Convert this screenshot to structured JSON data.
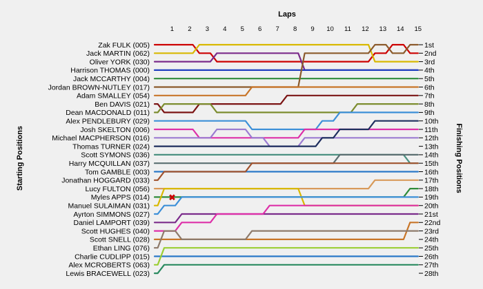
{
  "chart_data": {
    "type": "line",
    "title": "",
    "xlabel": "Laps",
    "ylabel_left": "Starting Positions",
    "ylabel_right": "Finishing Positions",
    "x": [
      0,
      1,
      2,
      3,
      4,
      5,
      6,
      7,
      8,
      9,
      10,
      11,
      12,
      13,
      14,
      15
    ],
    "lap_labels": [
      "1",
      "2",
      "3",
      "4",
      "5",
      "6",
      "7",
      "8",
      "9",
      "10",
      "11",
      "12",
      "13",
      "14",
      "15"
    ],
    "finishing_positions": [
      "1st",
      "2nd",
      "3rd",
      "4th",
      "5th",
      "6th",
      "7th",
      "8th",
      "9th",
      "10th",
      "11th",
      "12th",
      "13th",
      "14th",
      "15th",
      "16th",
      "17th",
      "18th",
      "19th",
      "20th",
      "21st",
      "22nd",
      "23rd",
      "24th",
      "25th",
      "26th",
      "27th",
      "28th"
    ],
    "ylim": [
      1,
      28
    ],
    "grid": false,
    "legend": "none",
    "annotation": {
      "symbol": "✖",
      "lap": 1,
      "position": 19,
      "color": "#cc0000"
    },
    "series": [
      {
        "name": "Zak FULK (005)",
        "color": "#cc0000",
        "values": [
          1,
          1,
          1,
          2,
          3,
          3,
          3,
          3,
          3,
          3,
          3,
          3,
          3,
          2,
          1,
          2
        ]
      },
      {
        "name": "Jack MARTIN (062)",
        "color": "#d8b800",
        "values": [
          2,
          2,
          2,
          1,
          1,
          1,
          1,
          1,
          1,
          1,
          1,
          1,
          1,
          3,
          3,
          3
        ]
      },
      {
        "name": "Oliver YORK (030)",
        "color": "#7a2a8a",
        "values": [
          3,
          3,
          3,
          3,
          2,
          2,
          2,
          2,
          2,
          4,
          4,
          4,
          4,
          4,
          4,
          4
        ]
      },
      {
        "name": "Harrison THOMAS (000)",
        "color": "#1f3fbf",
        "values": [
          4,
          4,
          4,
          4,
          4,
          4,
          4,
          4,
          4,
          4,
          4,
          4,
          4,
          4,
          4,
          4
        ]
      },
      {
        "name": "Jack MCCARTHY (004)",
        "color": "#2e8b3a",
        "values": [
          5,
          5,
          5,
          5,
          5,
          5,
          5,
          5,
          5,
          5,
          5,
          5,
          5,
          5,
          5,
          5
        ]
      },
      {
        "name": "Jordan BROWN-NUTLEY (017)",
        "color": "#8b5a2b",
        "values": [
          6,
          6,
          6,
          6,
          6,
          6,
          6,
          6,
          6,
          2,
          2,
          2,
          2,
          1,
          2,
          1
        ]
      },
      {
        "name": "Adam SMALLEY (054)",
        "color": "#c87528",
        "values": [
          7,
          7,
          7,
          7,
          7,
          7,
          6,
          6,
          6,
          6,
          6,
          6,
          6,
          6,
          6,
          6
        ]
      },
      {
        "name": "Ben DAVIS (021)",
        "color": "#7b1414",
        "values": [
          8,
          9,
          9,
          8,
          8,
          8,
          8,
          8,
          7,
          7,
          7,
          7,
          7,
          7,
          7,
          7
        ]
      },
      {
        "name": "Dean MACDONALD (011)",
        "color": "#7c8c2e",
        "values": [
          9,
          8,
          8,
          8,
          9,
          9,
          9,
          9,
          9,
          9,
          9,
          9,
          8,
          8,
          8,
          8
        ]
      },
      {
        "name": "Alex PENDLEBURY (029)",
        "color": "#3c8fd8",
        "values": [
          10,
          10,
          10,
          10,
          10,
          10,
          11,
          11,
          11,
          11,
          10,
          9,
          9,
          9,
          9,
          9
        ]
      },
      {
        "name": "Josh SKELTON (006)",
        "color": "#dd2fa8",
        "values": [
          11,
          11,
          11,
          12,
          12,
          12,
          12,
          12,
          12,
          11,
          11,
          11,
          11,
          11,
          11,
          11
        ]
      },
      {
        "name": "Michael MACPHERSON (016)",
        "color": "#9b7bd1",
        "values": [
          12,
          12,
          12,
          12,
          11,
          11,
          12,
          13,
          13,
          12,
          12,
          12,
          12,
          12,
          12,
          12
        ]
      },
      {
        "name": "Thomas TURNER (024)",
        "color": "#1e2e5e",
        "values": [
          13,
          13,
          13,
          13,
          13,
          13,
          13,
          13,
          13,
          13,
          12,
          11,
          11,
          10,
          10,
          10
        ]
      },
      {
        "name": "Scott SYMONS (036)",
        "color": "#4a9080",
        "values": [
          14,
          14,
          14,
          14,
          14,
          14,
          14,
          14,
          14,
          14,
          14,
          14,
          14,
          14,
          14,
          15
        ]
      },
      {
        "name": "Harry MCQUILLAN (037)",
        "color": "#5a6e70",
        "values": [
          15,
          15,
          15,
          15,
          15,
          15,
          15,
          15,
          15,
          15,
          15,
          14,
          14,
          14,
          14,
          14
        ]
      },
      {
        "name": "Tom GAMBLE (003)",
        "color": "#2a78c8",
        "values": [
          16,
          16,
          16,
          16,
          16,
          16,
          16,
          16,
          16,
          16,
          16,
          16,
          16,
          16,
          16,
          16
        ]
      },
      {
        "name": "Jonathan HOGGARD (033)",
        "color": "#a0522d",
        "values": [
          17,
          16,
          16,
          16,
          16,
          16,
          15,
          15,
          15,
          15,
          15,
          15,
          15,
          15,
          15,
          15
        ]
      },
      {
        "name": "Lucy FULTON (056)",
        "color": "#d89a5a",
        "values": [
          18,
          18,
          18,
          18,
          18,
          18,
          18,
          18,
          18,
          18,
          18,
          18,
          18,
          17,
          17,
          17
        ]
      },
      {
        "name": "Myles APPS (014)",
        "color": "#2e8b3a",
        "values": [
          19,
          19,
          19,
          19,
          19,
          19,
          19,
          19,
          19,
          19,
          19,
          19,
          19,
          19,
          19,
          18
        ]
      },
      {
        "name": "Manuel SULAIMAN (031)",
        "color": "#d8b800",
        "values": [
          20,
          18,
          18,
          18,
          18,
          18,
          18,
          18,
          18,
          20,
          20,
          20,
          20,
          20,
          20,
          20
        ]
      },
      {
        "name": "Ayrton SIMMONS (027)",
        "color": "#3c8fd8",
        "values": [
          21,
          20,
          19,
          19,
          19,
          19,
          19,
          19,
          19,
          19,
          19,
          19,
          19,
          19,
          19,
          19
        ]
      },
      {
        "name": "Daniel LAMPORT (039)",
        "color": "#7a2a8a",
        "values": [
          22,
          22,
          21,
          21,
          21,
          21,
          21,
          21,
          21,
          21,
          21,
          21,
          21,
          21,
          21,
          21
        ]
      },
      {
        "name": "Scott HUGHES (040)",
        "color": "#dd2fa8",
        "values": [
          23,
          23,
          22,
          22,
          21,
          21,
          21,
          20,
          20,
          20,
          20,
          20,
          20,
          20,
          20,
          20
        ]
      },
      {
        "name": "Scott SNELL (028)",
        "color": "#c87528",
        "values": [
          24,
          24,
          24,
          24,
          24,
          24,
          24,
          24,
          24,
          24,
          24,
          24,
          24,
          24,
          24,
          22
        ]
      },
      {
        "name": "Ethan LING (076)",
        "color": "#8e7a6a",
        "values": [
          25,
          23,
          24,
          24,
          24,
          24,
          23,
          23,
          23,
          23,
          23,
          23,
          23,
          23,
          23,
          23
        ]
      },
      {
        "name": "Charlie CUDLIPP (015)",
        "color": "#2a78c8",
        "values": [
          26,
          26,
          26,
          26,
          26,
          26,
          26,
          26,
          26,
          26,
          26,
          26,
          26,
          26,
          26,
          26
        ]
      },
      {
        "name": "Alex MCROBERTS (063)",
        "color": "#9acd32",
        "values": [
          27,
          25,
          25,
          25,
          25,
          25,
          25,
          25,
          25,
          25,
          25,
          25,
          25,
          25,
          25,
          25
        ]
      },
      {
        "name": "Lewis BRACEWELL (023)",
        "color": "#2a8a60",
        "values": [
          28,
          27,
          27,
          27,
          27,
          27,
          27,
          27,
          27,
          27,
          27,
          27,
          27,
          27,
          27,
          27
        ]
      }
    ]
  }
}
